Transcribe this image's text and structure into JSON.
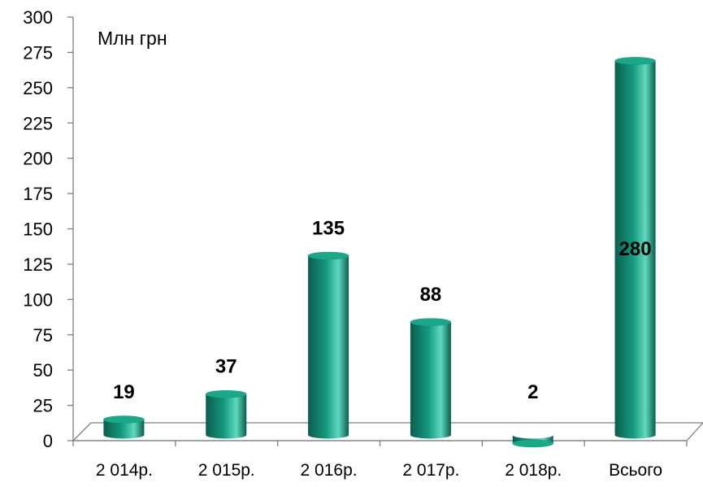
{
  "chart_data": {
    "type": "bar",
    "style": "3d-cylinder",
    "unit_label": "Млн грн",
    "categories": [
      "2 014р.",
      "2 015р.",
      "2 016р.",
      "2 017р.",
      "2 018р.",
      "Всього"
    ],
    "values": [
      19,
      37,
      135,
      88,
      2,
      280
    ],
    "data_labels": [
      "19",
      "37",
      "135",
      "88",
      "2",
      "280"
    ],
    "ylim": [
      0,
      300
    ],
    "yticks": [
      0,
      25,
      50,
      75,
      100,
      125,
      150,
      175,
      200,
      225,
      250,
      275,
      300
    ],
    "grid": false,
    "legend": "none",
    "colors": {
      "bar_dark": "#0a5e4e",
      "bar_mid": "#159a7f",
      "bar_light": "#5fd9bd",
      "bar_top": "#1aa889"
    }
  }
}
